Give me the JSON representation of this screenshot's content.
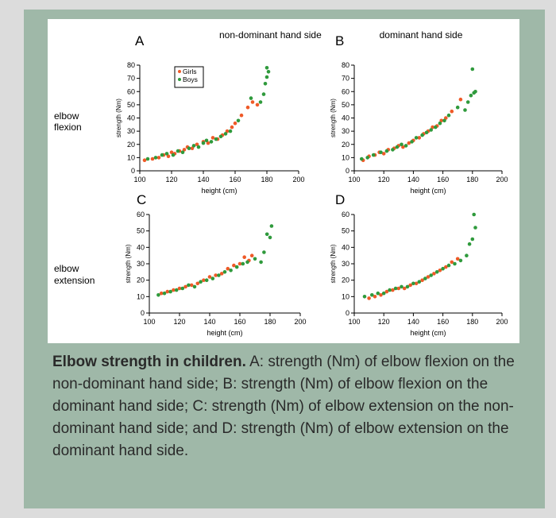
{
  "colors": {
    "girls": "#ef5a28",
    "boys": "#2f9a3c",
    "axis": "#000000",
    "frame": "#9fb8a8"
  },
  "column_titles": {
    "left": "non-dominant hand side",
    "right": "dominant hand side"
  },
  "row_labels": {
    "flexion": [
      "elbow",
      "flexion"
    ],
    "extension": [
      "elbow",
      "extension"
    ]
  },
  "caption": {
    "lead": "Elbow strength in children.",
    "body": " A: strength (Nm) of elbow flexion on the non-dominant hand side; B: strength (Nm) of elbow flexion on the dominant hand side; C: strength (Nm) of elbow extension on the non-dominant hand side; and D: strength (Nm) of elbow extension on the dominant hand side."
  },
  "chart_data": [
    {
      "panel": "A",
      "type": "scatter",
      "title": "non-dominant hand side",
      "xlabel": "height (cm)",
      "ylabel": "strength (Nm)",
      "xlim": [
        100,
        200
      ],
      "ylim": [
        0,
        80
      ],
      "xticks": [
        "100",
        "120",
        "140",
        "160",
        "180",
        "200"
      ],
      "yticks": [
        "0",
        "10",
        "20",
        "30",
        "40",
        "50",
        "60",
        "70",
        "80"
      ],
      "legend": [
        "Girls",
        "Boys"
      ],
      "legend_position": "top-left",
      "series": [
        {
          "name": "Girls",
          "points": [
            [
              103,
              8
            ],
            [
              108,
              9
            ],
            [
              112,
              10
            ],
            [
              115,
              12
            ],
            [
              118,
              11
            ],
            [
              120,
              14
            ],
            [
              122,
              13
            ],
            [
              125,
              15
            ],
            [
              128,
              16
            ],
            [
              130,
              18
            ],
            [
              133,
              17
            ],
            [
              136,
              20
            ],
            [
              140,
              22
            ],
            [
              143,
              21
            ],
            [
              146,
              25
            ],
            [
              149,
              24
            ],
            [
              152,
              27
            ],
            [
              155,
              30
            ],
            [
              158,
              33
            ],
            [
              160,
              36
            ],
            [
              164,
              42
            ],
            [
              168,
              48
            ],
            [
              171,
              52
            ],
            [
              174,
              50
            ]
          ]
        },
        {
          "name": "Boys",
          "points": [
            [
              105,
              9
            ],
            [
              110,
              10
            ],
            [
              114,
              12
            ],
            [
              117,
              13
            ],
            [
              121,
              12
            ],
            [
              124,
              15
            ],
            [
              127,
              14
            ],
            [
              131,
              17
            ],
            [
              134,
              19
            ],
            [
              137,
              18
            ],
            [
              140,
              21
            ],
            [
              142,
              23
            ],
            [
              145,
              22
            ],
            [
              148,
              24
            ],
            [
              151,
              26
            ],
            [
              154,
              28
            ],
            [
              157,
              30
            ],
            [
              162,
              38
            ],
            [
              170,
              55
            ],
            [
              176,
              52
            ],
            [
              178,
              58
            ],
            [
              179,
              66
            ],
            [
              180,
              71
            ],
            [
              181,
              75
            ],
            [
              180,
              78
            ]
          ]
        }
      ]
    },
    {
      "panel": "B",
      "type": "scatter",
      "title": "dominant hand side",
      "xlabel": "height (cm)",
      "ylabel": "strength (Nm)",
      "xlim": [
        100,
        200
      ],
      "ylim": [
        0,
        80
      ],
      "xticks": [
        "100",
        "120",
        "140",
        "160",
        "180",
        "200"
      ],
      "yticks": [
        "0",
        "10",
        "20",
        "30",
        "40",
        "50",
        "60",
        "70",
        "80"
      ],
      "series": [
        {
          "name": "Girls",
          "points": [
            [
              106,
              8
            ],
            [
              110,
              11
            ],
            [
              114,
              12
            ],
            [
              117,
              14
            ],
            [
              120,
              13
            ],
            [
              123,
              16
            ],
            [
              127,
              17
            ],
            [
              130,
              19
            ],
            [
              133,
              18
            ],
            [
              137,
              21
            ],
            [
              140,
              23
            ],
            [
              144,
              25
            ],
            [
              147,
              28
            ],
            [
              150,
              30
            ],
            [
              153,
              33
            ],
            [
              156,
              34
            ],
            [
              159,
              38
            ],
            [
              162,
              40
            ],
            [
              166,
              45
            ],
            [
              172,
              54
            ]
          ]
        },
        {
          "name": "Boys",
          "points": [
            [
              105,
              9
            ],
            [
              109,
              10
            ],
            [
              113,
              12
            ],
            [
              118,
              14
            ],
            [
              122,
              15
            ],
            [
              126,
              16
            ],
            [
              129,
              18
            ],
            [
              132,
              20
            ],
            [
              135,
              19
            ],
            [
              139,
              22
            ],
            [
              142,
              25
            ],
            [
              146,
              27
            ],
            [
              149,
              29
            ],
            [
              152,
              31
            ],
            [
              155,
              33
            ],
            [
              158,
              36
            ],
            [
              161,
              38
            ],
            [
              164,
              42
            ],
            [
              170,
              48
            ],
            [
              175,
              46
            ],
            [
              177,
              52
            ],
            [
              179,
              57
            ],
            [
              181,
              59
            ],
            [
              182,
              60
            ],
            [
              180,
              77
            ]
          ]
        }
      ]
    },
    {
      "panel": "C",
      "type": "scatter",
      "xlabel": "height (cm)",
      "ylabel": "strength (Nm)",
      "xlim": [
        100,
        200
      ],
      "ylim": [
        0,
        60
      ],
      "xticks": [
        "100",
        "120",
        "140",
        "160",
        "180",
        "200"
      ],
      "yticks": [
        "0",
        "10",
        "20",
        "30",
        "40",
        "50",
        "60"
      ],
      "series": [
        {
          "name": "Girls",
          "points": [
            [
              108,
              12
            ],
            [
              112,
              13
            ],
            [
              116,
              14
            ],
            [
              120,
              15
            ],
            [
              124,
              16
            ],
            [
              128,
              17
            ],
            [
              132,
              18
            ],
            [
              136,
              20
            ],
            [
              140,
              22
            ],
            [
              144,
              23
            ],
            [
              148,
              24
            ],
            [
              152,
              27
            ],
            [
              156,
              29
            ],
            [
              160,
              30
            ],
            [
              163,
              34
            ],
            [
              166,
              32
            ],
            [
              168,
              35
            ]
          ]
        },
        {
          "name": "Boys",
          "points": [
            [
              106,
              11
            ],
            [
              110,
              12
            ],
            [
              114,
              13
            ],
            [
              118,
              14
            ],
            [
              122,
              15
            ],
            [
              126,
              17
            ],
            [
              130,
              16
            ],
            [
              134,
              19
            ],
            [
              138,
              20
            ],
            [
              142,
              21
            ],
            [
              146,
              23
            ],
            [
              150,
              25
            ],
            [
              154,
              26
            ],
            [
              158,
              28
            ],
            [
              162,
              30
            ],
            [
              165,
              31
            ],
            [
              170,
              33
            ],
            [
              174,
              31
            ],
            [
              176,
              37
            ],
            [
              178,
              48
            ],
            [
              180,
              46
            ],
            [
              181,
              53
            ]
          ]
        }
      ]
    },
    {
      "panel": "D",
      "type": "scatter",
      "xlabel": "height (cm)",
      "ylabel": "strength (Nm)",
      "xlim": [
        100,
        200
      ],
      "ylim": [
        0,
        60
      ],
      "xticks": [
        "100",
        "120",
        "140",
        "160",
        "180",
        "200"
      ],
      "yticks": [
        "0",
        "10",
        "20",
        "30",
        "40",
        "50",
        "60"
      ],
      "series": [
        {
          "name": "Girls",
          "points": [
            [
              110,
              9
            ],
            [
              114,
              10
            ],
            [
              118,
              11
            ],
            [
              122,
              13
            ],
            [
              126,
              14
            ],
            [
              130,
              15
            ],
            [
              134,
              15
            ],
            [
              138,
              17
            ],
            [
              142,
              18
            ],
            [
              146,
              20
            ],
            [
              150,
              22
            ],
            [
              154,
              24
            ],
            [
              158,
              26
            ],
            [
              162,
              28
            ],
            [
              166,
              31
            ],
            [
              170,
              33
            ]
          ]
        },
        {
          "name": "Boys",
          "points": [
            [
              107,
              10
            ],
            [
              112,
              11
            ],
            [
              116,
              12
            ],
            [
              120,
              12
            ],
            [
              124,
              14
            ],
            [
              128,
              15
            ],
            [
              132,
              16
            ],
            [
              136,
              16
            ],
            [
              140,
              18
            ],
            [
              144,
              19
            ],
            [
              148,
              21
            ],
            [
              152,
              23
            ],
            [
              156,
              25
            ],
            [
              160,
              27
            ],
            [
              164,
              29
            ],
            [
              168,
              30
            ],
            [
              172,
              32
            ],
            [
              176,
              35
            ],
            [
              178,
              42
            ],
            [
              180,
              45
            ],
            [
              182,
              52
            ],
            [
              181,
              60
            ]
          ]
        }
      ]
    }
  ]
}
